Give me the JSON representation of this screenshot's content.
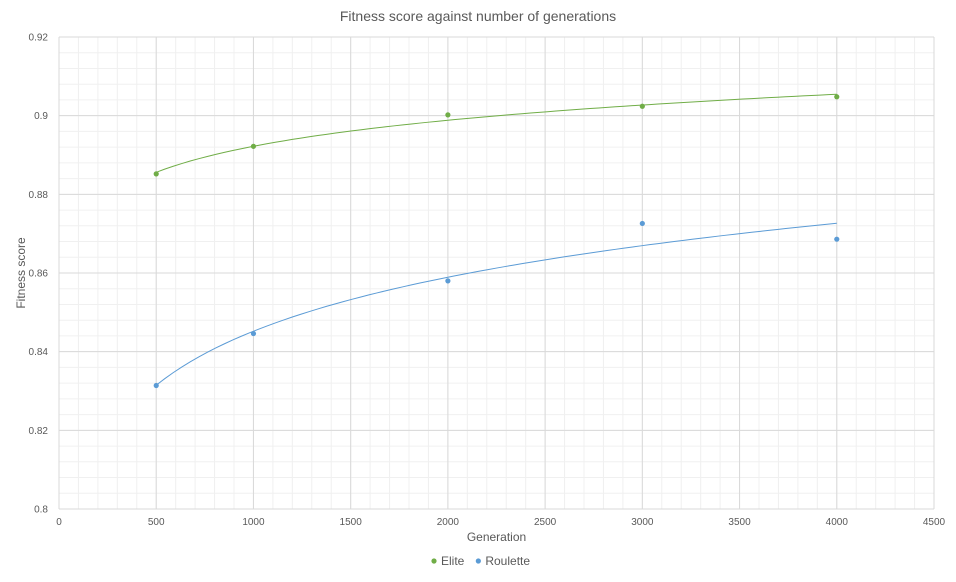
{
  "chart_data": {
    "type": "scatter",
    "title": "Fitness score against number of generations",
    "xlabel": "Generation",
    "ylabel": "Fitness score",
    "xlim": [
      0,
      4500
    ],
    "ylim": [
      0.8,
      0.92
    ],
    "x_ticks": [
      0,
      500,
      1000,
      1500,
      2000,
      2500,
      3000,
      3500,
      4000,
      4500
    ],
    "x_tick_labels": [
      "0",
      "500",
      "1000",
      "1500",
      "2000",
      "2500",
      "3000",
      "3500",
      "4000",
      "4500"
    ],
    "y_ticks": [
      0.8,
      0.82,
      0.84,
      0.86,
      0.88,
      0.9,
      0.92
    ],
    "y_tick_labels": [
      "0.8",
      "0.82",
      "0.84",
      "0.86",
      "0.88",
      "0.9",
      "0.92"
    ],
    "grid": true,
    "legend_position": "bottom",
    "trendline": "logarithmic",
    "series": [
      {
        "name": "Elite",
        "color": "#70ad47",
        "x": [
          500,
          1000,
          2000,
          3000,
          4000
        ],
        "y": [
          0.8852,
          0.8922,
          0.9002,
          0.9024,
          0.9048
        ]
      },
      {
        "name": "Roulette",
        "color": "#5b9bd5",
        "x": [
          500,
          1000,
          2000,
          3000,
          4000
        ],
        "y": [
          0.8314,
          0.8446,
          0.858,
          0.8726,
          0.8686
        ]
      }
    ]
  }
}
